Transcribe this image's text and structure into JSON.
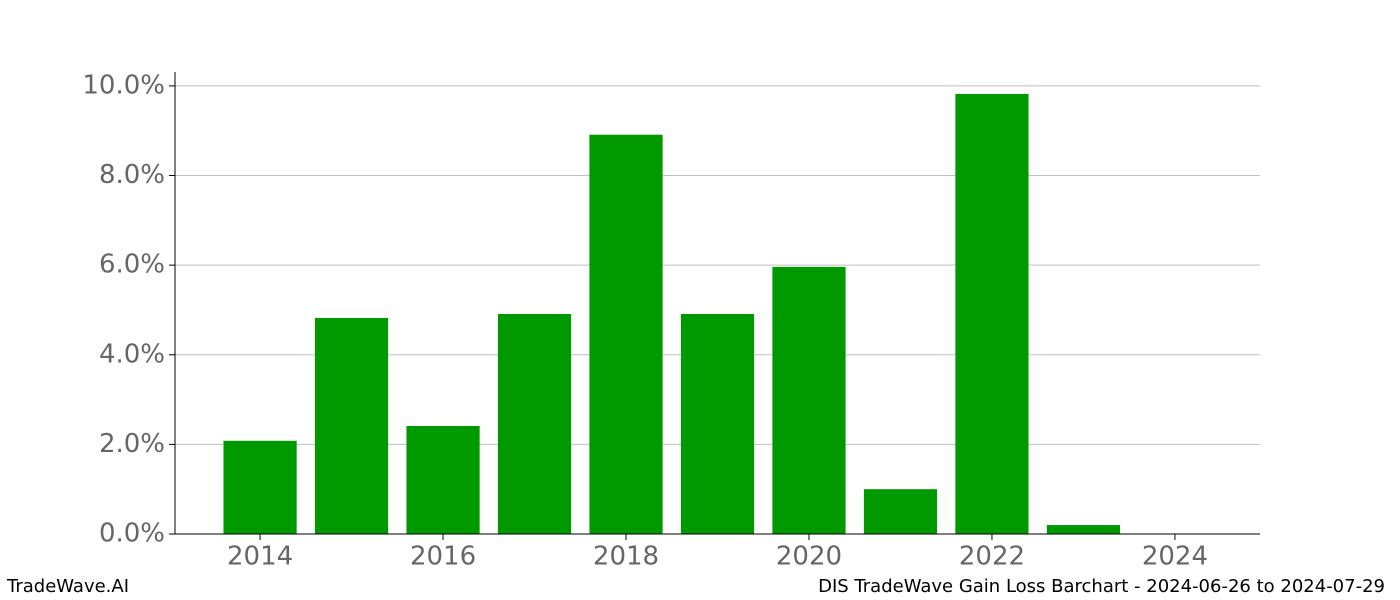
{
  "chart_data": {
    "type": "bar",
    "x": [
      2014,
      2015,
      2016,
      2017,
      2018,
      2019,
      2020,
      2021,
      2022,
      2023
    ],
    "values": [
      2.08,
      4.82,
      2.41,
      4.91,
      8.91,
      4.91,
      5.96,
      1.0,
      9.82,
      0.2
    ],
    "color": "#009900",
    "xlim": [
      2013.07,
      2024.93
    ],
    "xticks": [
      2014,
      2016,
      2018,
      2020,
      2022,
      2024
    ],
    "ylim": [
      0,
      10.31
    ],
    "yticks": [
      {
        "value": 0,
        "label": "0.0%"
      },
      {
        "value": 2,
        "label": "2.0%"
      },
      {
        "value": 4,
        "label": "4.0%"
      },
      {
        "value": 6,
        "label": "6.0%"
      },
      {
        "value": 8,
        "label": "8.0%"
      },
      {
        "value": 10,
        "label": "10.0%"
      }
    ],
    "grid": true,
    "footer_left": "TradeWave.AI",
    "footer_right": "DIS TradeWave Gain Loss Barchart - 2024-06-26 to 2024-07-29"
  }
}
